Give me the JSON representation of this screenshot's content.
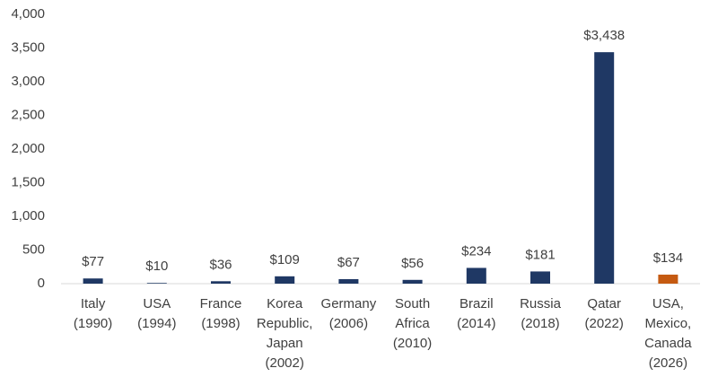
{
  "chart_data": {
    "type": "bar",
    "categories": [
      "Italy\n(1990)",
      "USA\n(1994)",
      "France\n(1998)",
      "Korea\nRepublic,\nJapan\n(2002)",
      "Germany\n(2006)",
      "South\nAfrica\n(2010)",
      "Brazil\n(2014)",
      "Russia\n(2018)",
      "Qatar\n(2022)",
      "USA,\nMexico,\nCanada\n(2026)"
    ],
    "values": [
      77,
      10,
      36,
      109,
      67,
      56,
      234,
      181,
      3438,
      134
    ],
    "value_labels": [
      "$77",
      "$10",
      "$36",
      "$109",
      "$67",
      "$56",
      "$234",
      "$181",
      "$3,438",
      "$134"
    ],
    "colors": [
      "#1f3864",
      "#1f3864",
      "#1f3864",
      "#1f3864",
      "#1f3864",
      "#1f3864",
      "#1f3864",
      "#1f3864",
      "#1f3864",
      "#c55a11"
    ],
    "ylim": [
      0,
      4000
    ],
    "yticks": [
      0,
      500,
      {
        "value": 1000,
        "label": "1,000"
      },
      {
        "value": 1500,
        "label": "1,500"
      },
      {
        "value": 2000,
        "label": "2,000"
      },
      {
        "value": 2500,
        "label": "2,500"
      },
      {
        "value": 3000,
        "label": "3,000"
      },
      {
        "value": 3500,
        "label": "3,500"
      },
      {
        "value": 4000,
        "label": "4,000"
      }
    ],
    "grid": false
  }
}
